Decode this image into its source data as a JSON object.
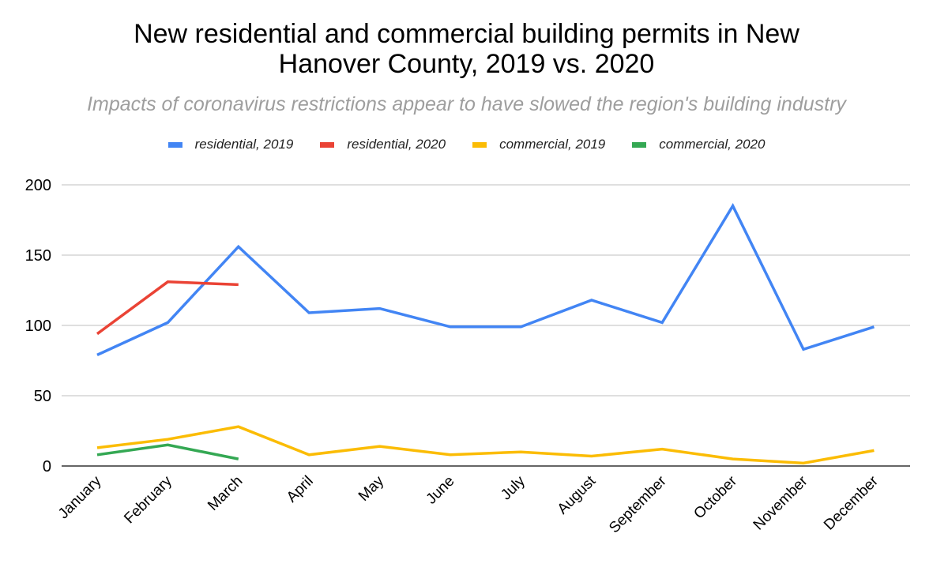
{
  "chart_data": {
    "type": "line",
    "title": "New residential and commercial building permits in New Hanover County, 2019 vs. 2020",
    "title_lines": [
      "New residential and commercial building permits in New",
      "Hanover County, 2019 vs. 2020"
    ],
    "subtitle": "Impacts of coronavirus restrictions appear to have slowed the region's building industry",
    "xlabel": "",
    "ylabel": "",
    "ylim": [
      0,
      200
    ],
    "yticks": [
      0,
      50,
      100,
      150,
      200
    ],
    "grid": true,
    "legend_position": "top",
    "categories": [
      "January",
      "February",
      "March",
      "April",
      "May",
      "June",
      "July",
      "August",
      "September",
      "October",
      "November",
      "December"
    ],
    "series": [
      {
        "name": "residential, 2019",
        "color": "#4285f4",
        "values": [
          79,
          102,
          156,
          109,
          112,
          99,
          99,
          118,
          102,
          185,
          83,
          99
        ]
      },
      {
        "name": "residential, 2020",
        "color": "#ea4335",
        "values": [
          94,
          131,
          129,
          null,
          null,
          null,
          null,
          null,
          null,
          null,
          null,
          null
        ]
      },
      {
        "name": "commercial, 2019",
        "color": "#fbbc04",
        "values": [
          13,
          19,
          28,
          8,
          14,
          8,
          10,
          7,
          12,
          5,
          2,
          11
        ]
      },
      {
        "name": "commercial, 2020",
        "color": "#34a853",
        "values": [
          8,
          15,
          5,
          null,
          null,
          null,
          null,
          null,
          null,
          null,
          null,
          null
        ]
      }
    ]
  }
}
